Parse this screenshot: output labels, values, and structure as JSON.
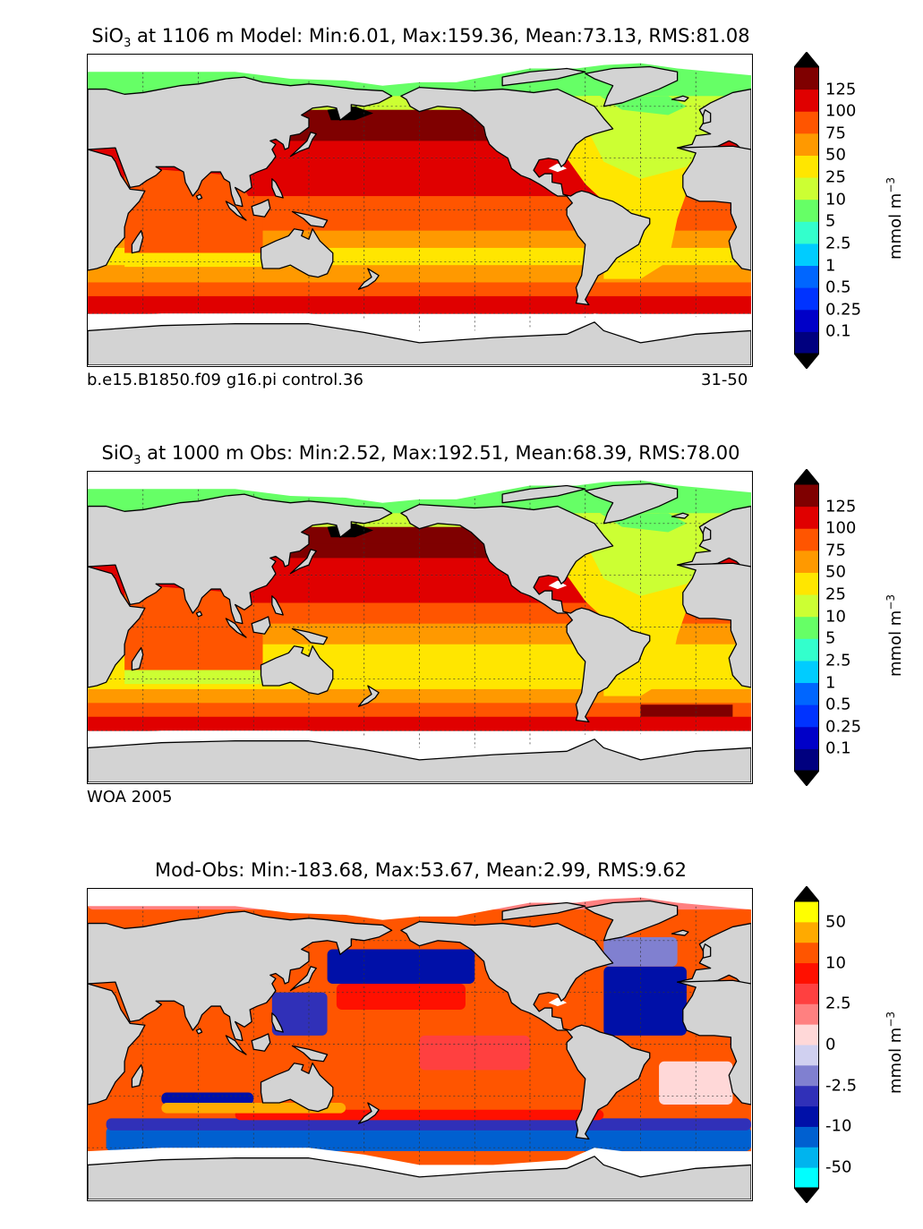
{
  "panels": [
    {
      "id": "model",
      "title_prefix": "SiO",
      "title_sub": "3",
      "title_rest": " at 1106 m Model: Min:6.01, Max:159.36, Mean:73.13, RMS:81.08",
      "caption_left": "b.e15.B1850.f09 g16.pi control.36",
      "caption_right": "31-50",
      "units": "mmol m",
      "units_sup": "−3",
      "colorbar": {
        "colors": [
          "#00007f",
          "#0000c8",
          "#0033ff",
          "#0066ff",
          "#00ccff",
          "#33ffcc",
          "#66ff66",
          "#ccff33",
          "#ffe600",
          "#ff9900",
          "#ff5500",
          "#e00000",
          "#7f0000"
        ],
        "labels": [
          "0.1",
          "0.25",
          "0.5",
          "1",
          "2.5",
          "5",
          "10",
          "25",
          "50",
          "75",
          "100",
          "125"
        ]
      }
    },
    {
      "id": "obs",
      "title_prefix": "SiO",
      "title_sub": "3",
      "title_rest": " at 1000 m Obs: Min:2.52, Max:192.51, Mean:68.39, RMS:78.00",
      "caption_left": "WOA 2005",
      "caption_right": "",
      "units": "mmol m",
      "units_sup": "−3",
      "colorbar": {
        "colors": [
          "#00007f",
          "#0000c8",
          "#0033ff",
          "#0066ff",
          "#00ccff",
          "#33ffcc",
          "#66ff66",
          "#ccff33",
          "#ffe600",
          "#ff9900",
          "#ff5500",
          "#e00000",
          "#7f0000"
        ],
        "labels": [
          "0.1",
          "0.25",
          "0.5",
          "1",
          "2.5",
          "5",
          "10",
          "25",
          "50",
          "75",
          "100",
          "125"
        ]
      }
    },
    {
      "id": "diff",
      "title_prefix": "",
      "title_sub": "",
      "title_rest": "Mod-Obs: Min:-183.68, Max:53.67, Mean:2.99, RMS:9.62",
      "caption_left": "",
      "caption_right": "",
      "units": "mmol m",
      "units_sup": "−3",
      "colorbar": {
        "colors": [
          "#00ffff",
          "#00b4ee",
          "#0060d0",
          "#0010a8",
          "#3030b8",
          "#8080d0",
          "#d0d0f0",
          "#ffd8d8",
          "#ff8080",
          "#ff4040",
          "#ff1000",
          "#ff5500",
          "#ffaa00",
          "#ffff00"
        ],
        "labels": [
          "-50",
          "-10",
          "-2.5",
          "0",
          "2.5",
          "10",
          "50"
        ]
      }
    }
  ],
  "colors": {
    "land": "#d3d3d3",
    "missing": "#ffffff",
    "grid": "#333333"
  }
}
